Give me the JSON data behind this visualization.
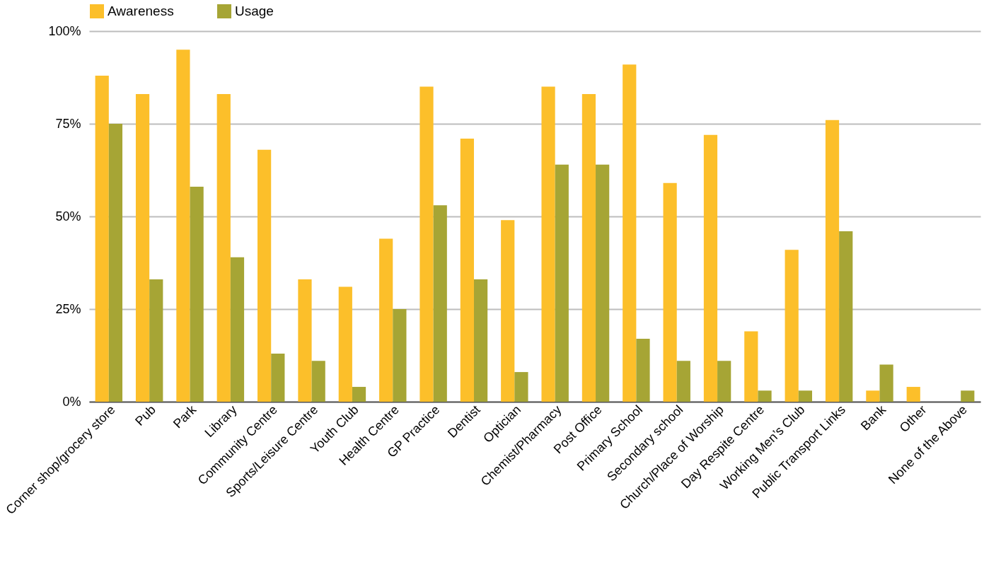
{
  "chart_data": {
    "type": "bar",
    "categories": [
      "Corner shop/grocery store",
      "Pub",
      "Park",
      "Library",
      "Community Centre",
      "Sports/Leisure Centre",
      "Youth Club",
      "Health Centre",
      "GP Practice",
      "Dentist",
      "Optician",
      "Chemist/Pharmacy",
      "Post Office",
      "Primary School",
      "Secondary school",
      "Church/Place of Worship",
      "Day Respite Centre",
      "Working Men’s Club",
      "Public Transport Links",
      "Bank",
      "Other",
      "None of the Above"
    ],
    "series": [
      {
        "name": "Awareness",
        "color": "#fcbf2a",
        "values": [
          88,
          83,
          95,
          83,
          68,
          33,
          31,
          44,
          85,
          71,
          49,
          85,
          83,
          91,
          59,
          72,
          19,
          41,
          76,
          3,
          4,
          0
        ]
      },
      {
        "name": "Usage",
        "color": "#a6a535",
        "values": [
          75,
          33,
          58,
          39,
          13,
          11,
          4,
          25,
          53,
          33,
          8,
          64,
          64,
          17,
          11,
          11,
          3,
          3,
          46,
          10,
          0,
          3
        ]
      }
    ],
    "ylim": [
      0,
      100
    ],
    "yticks": [
      {
        "value": 0,
        "label": "0%"
      },
      {
        "value": 25,
        "label": "25%"
      },
      {
        "value": 50,
        "label": "50%"
      },
      {
        "value": 75,
        "label": "75%"
      },
      {
        "value": 100,
        "label": "100%"
      }
    ],
    "grid": "y",
    "legend": "top"
  }
}
